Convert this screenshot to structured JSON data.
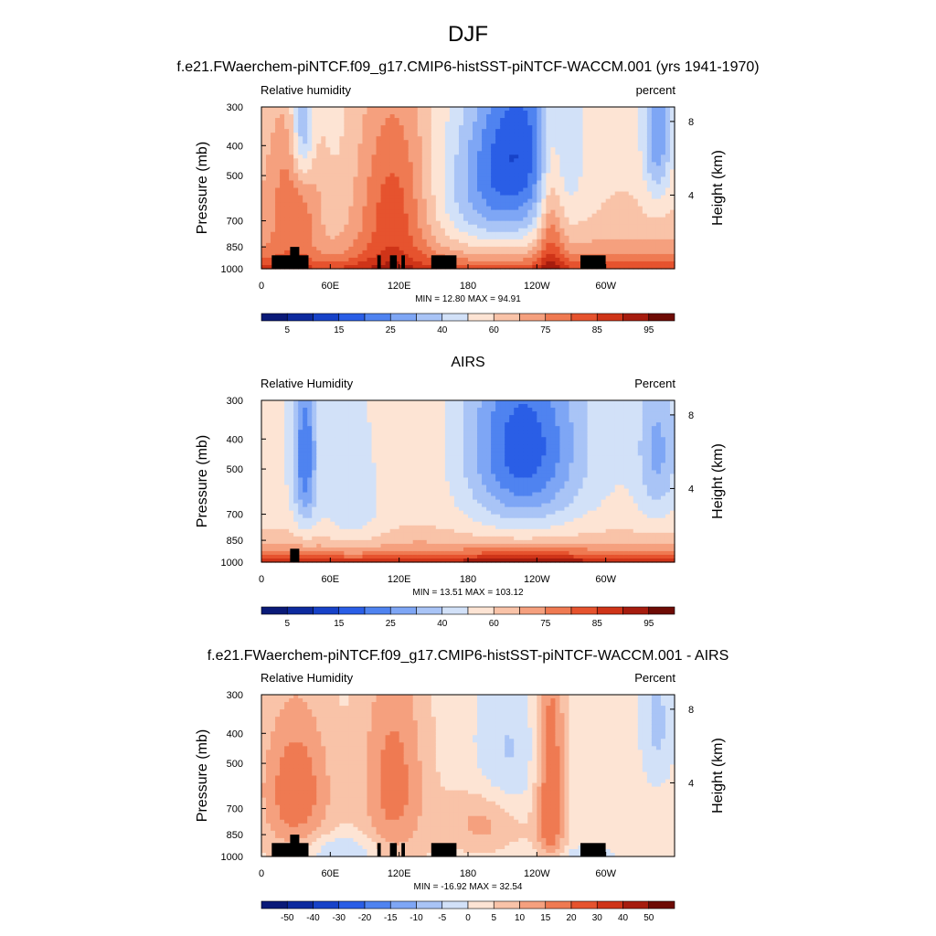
{
  "page_title": "DJF",
  "chart_data": [
    {
      "type": "heatmap",
      "title": "f.e21.FWaerchem-piNTCF.f09_g17.CMIP6-histSST-piNTCF-WACCM.001 (yrs 1941-1970)",
      "left_label": "Relative humidity",
      "right_label": "percent",
      "ylabel": "Pressure (mb)",
      "y2label": "Height (km)",
      "x_ticks": [
        "0",
        "60E",
        "120E",
        "180",
        "120W",
        "60W"
      ],
      "x_tick_values": [
        0,
        60,
        120,
        180,
        240,
        300
      ],
      "xlim": [
        0,
        360
      ],
      "y_ticks": [
        "300",
        "400",
        "500",
        "700",
        "850",
        "1000"
      ],
      "y_tick_values": [
        300,
        400,
        500,
        700,
        850,
        1000
      ],
      "ylim": [
        1000,
        300
      ],
      "y2_ticks": [
        "8",
        "4"
      ],
      "stats": "MIN =  12.80  MAX =  94.91",
      "colorbar_labels": [
        "5",
        "15",
        "25",
        "40",
        "60",
        "75",
        "85",
        "95"
      ]
    },
    {
      "type": "heatmap",
      "title": "AIRS",
      "left_label": "Relative Humidity",
      "right_label": "Percent",
      "ylabel": "Pressure (mb)",
      "y2label": "Height (km)",
      "x_ticks": [
        "0",
        "60E",
        "120E",
        "180",
        "120W",
        "60W"
      ],
      "x_tick_values": [
        0,
        60,
        120,
        180,
        240,
        300
      ],
      "xlim": [
        0,
        360
      ],
      "y_ticks": [
        "300",
        "400",
        "500",
        "700",
        "850",
        "1000"
      ],
      "y_tick_values": [
        300,
        400,
        500,
        700,
        850,
        1000
      ],
      "ylim": [
        1000,
        300
      ],
      "y2_ticks": [
        "8",
        "4"
      ],
      "stats": "MIN =  13.51  MAX = 103.12",
      "colorbar_labels": [
        "5",
        "15",
        "25",
        "40",
        "60",
        "75",
        "85",
        "95"
      ]
    },
    {
      "type": "heatmap",
      "title": "f.e21.FWaerchem-piNTCF.f09_g17.CMIP6-histSST-piNTCF-WACCM.001 - AIRS",
      "left_label": "Relative Humidity",
      "right_label": "Percent",
      "ylabel": "Pressure (mb)",
      "y2label": "Height (km)",
      "x_ticks": [
        "0",
        "60E",
        "120E",
        "180",
        "120W",
        "60W"
      ],
      "x_tick_values": [
        0,
        60,
        120,
        180,
        240,
        300
      ],
      "xlim": [
        0,
        360
      ],
      "y_ticks": [
        "300",
        "400",
        "500",
        "700",
        "850",
        "1000"
      ],
      "y_tick_values": [
        300,
        400,
        500,
        700,
        850,
        1000
      ],
      "ylim": [
        1000,
        300
      ],
      "y2_ticks": [
        "8",
        "4"
      ],
      "stats": "MIN = -16.92  MAX =  32.54",
      "colorbar_labels": [
        "-50",
        "-40",
        "-30",
        "-20",
        "-15",
        "-10",
        "-5",
        "0",
        "5",
        "10",
        "15",
        "20",
        "30",
        "40",
        "50"
      ]
    }
  ],
  "colors": {
    "palette": [
      "#0a1a78",
      "#0d2a9e",
      "#1742c8",
      "#2a5ee6",
      "#4f83f0",
      "#7ea6f5",
      "#a9c4f6",
      "#d2e1f8",
      "#fde4d4",
      "#f9c3a8",
      "#f5a07e",
      "#ef7a52",
      "#e6532e",
      "#cf3418",
      "#a61c0e",
      "#6e0b05"
    ],
    "terrain": "#000000",
    "frame": "#000000"
  }
}
